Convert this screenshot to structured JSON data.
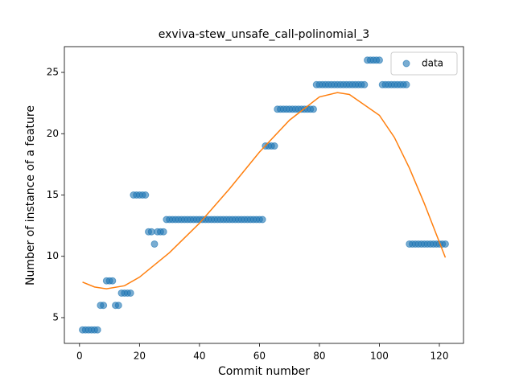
{
  "chart_data": {
    "type": "scatter",
    "title": "exviva-stew_unsafe_call-polinomial_3",
    "xlabel": "Commit number",
    "ylabel": "Number of instance of a feature",
    "xlim": [
      -5.05,
      128.05
    ],
    "ylim": [
      2.9,
      27.1
    ],
    "xticks": [
      0,
      20,
      40,
      60,
      80,
      100,
      120
    ],
    "yticks": [
      5,
      10,
      15,
      20,
      25
    ],
    "grid": false,
    "legend": "upper right",
    "series": [
      {
        "name": "data",
        "type": "scatter",
        "color": "#1f77b4",
        "x": [
          1,
          2,
          3,
          4,
          5,
          6,
          7,
          8,
          9,
          10,
          11,
          12,
          13,
          14,
          15,
          16,
          17,
          18,
          19,
          20,
          21,
          22,
          23,
          24,
          25,
          26,
          27,
          28,
          29,
          30,
          31,
          32,
          33,
          34,
          35,
          36,
          37,
          38,
          39,
          40,
          41,
          42,
          43,
          44,
          45,
          46,
          47,
          48,
          49,
          50,
          51,
          52,
          53,
          54,
          55,
          56,
          57,
          58,
          59,
          60,
          61,
          62,
          63,
          64,
          65,
          66,
          67,
          68,
          69,
          70,
          71,
          72,
          73,
          74,
          75,
          76,
          77,
          78,
          79,
          80,
          81,
          82,
          83,
          84,
          85,
          86,
          87,
          88,
          89,
          90,
          91,
          92,
          93,
          94,
          95,
          96,
          97,
          98,
          99,
          100,
          101,
          102,
          103,
          104,
          105,
          106,
          107,
          108,
          109,
          110,
          111,
          112,
          113,
          114,
          115,
          116,
          117,
          118,
          119,
          120,
          121,
          122
        ],
        "values": [
          4,
          4,
          4,
          4,
          4,
          4,
          6,
          6,
          8,
          8,
          8,
          6,
          6,
          7,
          7,
          7,
          7,
          15,
          15,
          15,
          15,
          15,
          12,
          12,
          11,
          12,
          12,
          12,
          13,
          13,
          13,
          13,
          13,
          13,
          13,
          13,
          13,
          13,
          13,
          13,
          13,
          13,
          13,
          13,
          13,
          13,
          13,
          13,
          13,
          13,
          13,
          13,
          13,
          13,
          13,
          13,
          13,
          13,
          13,
          13,
          13,
          19,
          19,
          19,
          19,
          22,
          22,
          22,
          22,
          22,
          22,
          22,
          22,
          22,
          22,
          22,
          22,
          22,
          24,
          24,
          24,
          24,
          24,
          24,
          24,
          24,
          24,
          24,
          24,
          24,
          24,
          24,
          24,
          24,
          24,
          26,
          26,
          26,
          26,
          26,
          24,
          24,
          24,
          24,
          24,
          24,
          24,
          24,
          24,
          11,
          11,
          11,
          11,
          11,
          11,
          11,
          11,
          11,
          11,
          11,
          11,
          11
        ]
      },
      {
        "type": "line",
        "color": "#ff7f0e",
        "x": [
          1,
          5,
          9,
          15,
          20,
          30,
          40,
          50,
          60,
          70,
          80,
          86,
          90,
          100,
          105,
          110,
          115,
          122
        ],
        "values": [
          7.9,
          7.5,
          7.35,
          7.6,
          8.3,
          10.3,
          12.7,
          15.5,
          18.5,
          21.1,
          23.0,
          23.35,
          23.2,
          21.5,
          19.7,
          17.2,
          14.3,
          9.9
        ]
      }
    ]
  }
}
